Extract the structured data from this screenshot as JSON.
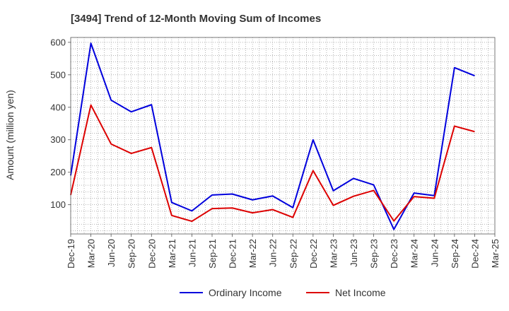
{
  "chart_data": {
    "type": "line",
    "title": "[3494]  Trend of 12-Month Moving Sum of Incomes",
    "xlabel": "",
    "ylabel": "Amount (million yen)",
    "ylim": [
      10,
      615
    ],
    "yticks": [
      100,
      200,
      300,
      400,
      500,
      600
    ],
    "x_labels": [
      "Dec-19",
      "Mar-20",
      "Jun-20",
      "Sep-20",
      "Dec-20",
      "Mar-21",
      "Jun-21",
      "Sep-21",
      "Dec-21",
      "Mar-22",
      "Jun-22",
      "Sep-22",
      "Dec-22",
      "Mar-23",
      "Jun-23",
      "Sep-23",
      "Dec-23",
      "Mar-24",
      "Jun-24",
      "Sep-24",
      "Dec-24",
      "Mar-25"
    ],
    "grid": true,
    "legend_position": "bottom-center",
    "series": [
      {
        "name": "Ordinary Income",
        "color": "#0000dd",
        "values": [
          190,
          597,
          422,
          386,
          408,
          107,
          81,
          130,
          133,
          115,
          127,
          91,
          300,
          143,
          181,
          161,
          24,
          136,
          128,
          522,
          497,
          null
        ]
      },
      {
        "name": "Net Income",
        "color": "#dd0000",
        "values": [
          130,
          407,
          287,
          258,
          276,
          67,
          49,
          88,
          90,
          75,
          85,
          61,
          205,
          98,
          126,
          144,
          50,
          125,
          120,
          342,
          325,
          null
        ]
      }
    ]
  }
}
